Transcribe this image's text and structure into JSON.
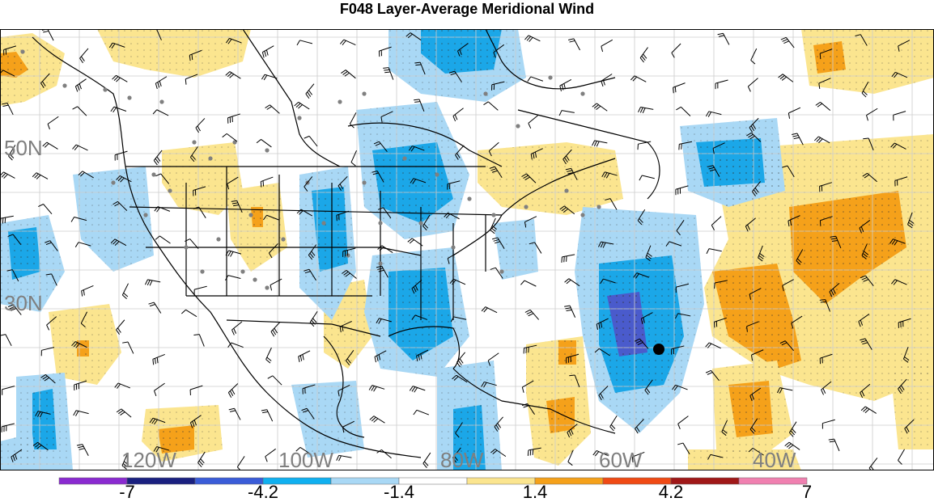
{
  "title": "F048 Layer-Average Meridional Wind",
  "map": {
    "lat_labels": [
      "50N",
      "30N"
    ],
    "lon_labels": [
      "120W",
      "100W",
      "80W",
      "60W",
      "40W"
    ],
    "fill_colors": {
      "neg_light": "#a9d8f5",
      "neg_mid": "#1ba7e8",
      "neg_strong": "#4a5bcc",
      "pos_light": "#fbe58f",
      "pos_mid": "#f5a11a",
      "pos_strong": "#e8781a"
    },
    "features": [
      "wind barbs",
      "station dots",
      "coastlines",
      "political boundaries",
      "latitude/longitude grid"
    ]
  },
  "colorbar": {
    "labels": [
      "-7",
      "-4.2",
      "-1.4",
      "1.4",
      "4.2",
      "7"
    ],
    "colors": [
      "#8a2ad0",
      "#1a2080",
      "#3a5cd8",
      "#10b0f0",
      "#a9d8f5",
      "#ffffff",
      "#fbe58f",
      "#f5a11a",
      "#f04a14",
      "#a01818",
      "#f080b0"
    ]
  }
}
